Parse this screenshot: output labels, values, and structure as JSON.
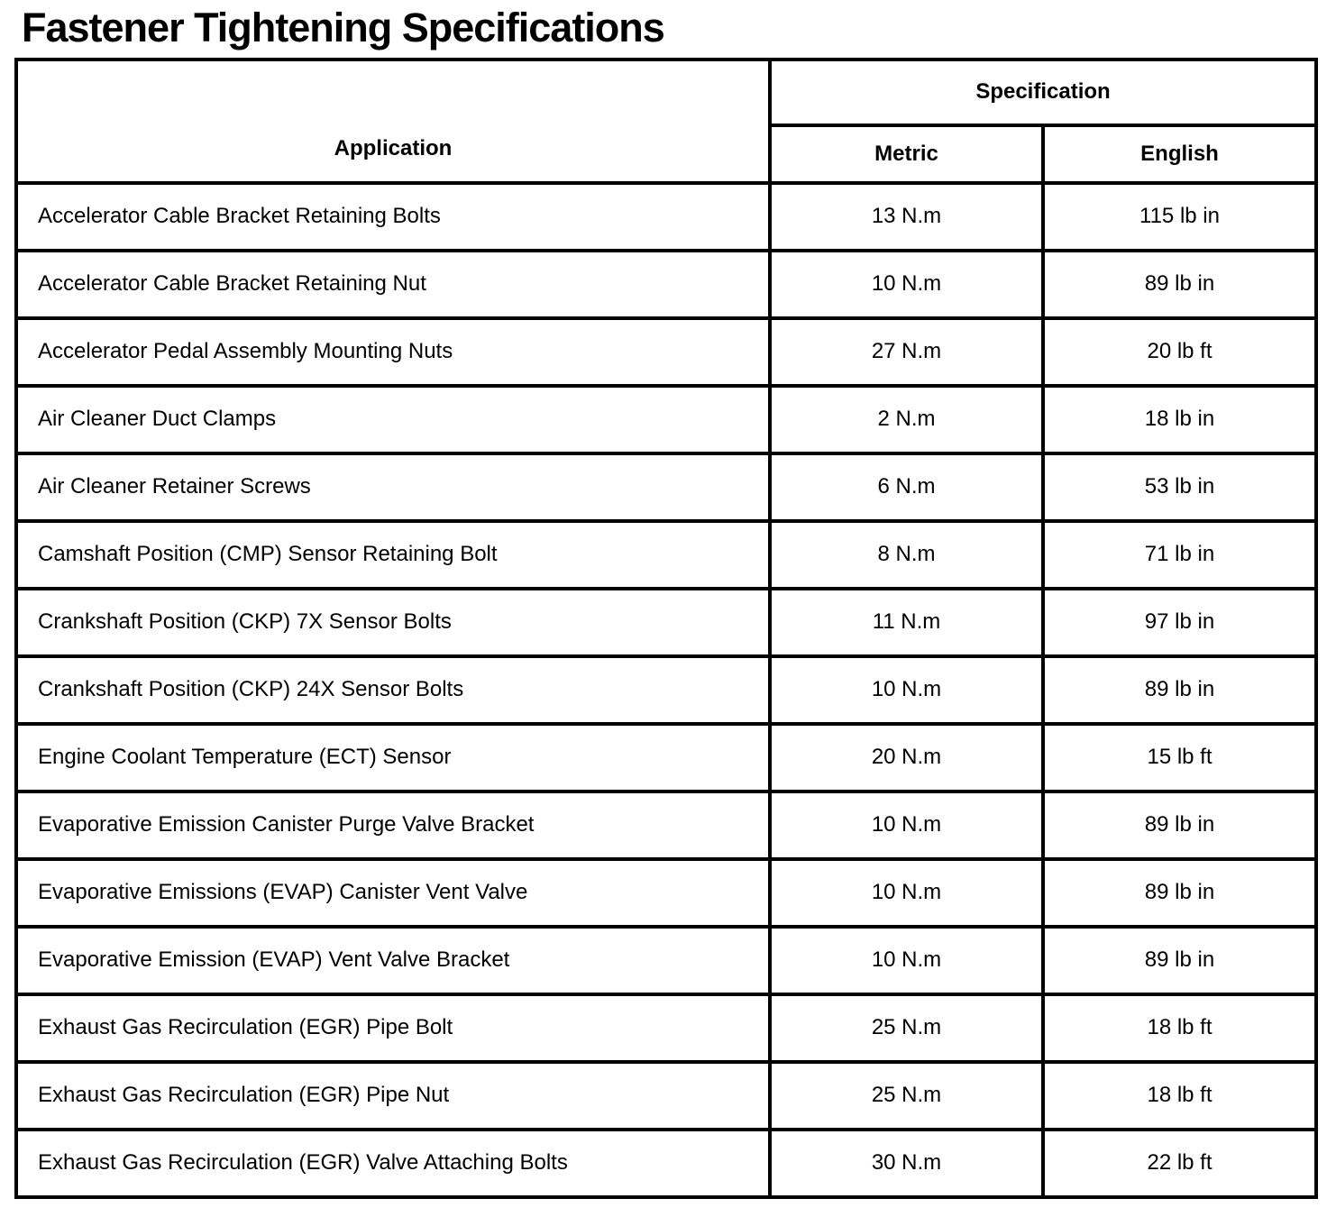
{
  "page": {
    "title": "Fastener Tightening Specifications"
  },
  "table": {
    "headers": {
      "application": "Application",
      "specification": "Specification",
      "metric": "Metric",
      "english": "English"
    },
    "rows": [
      {
        "application": "Accelerator Cable Bracket Retaining Bolts",
        "metric": "13 N.m",
        "english": "115 lb in"
      },
      {
        "application": "Accelerator Cable Bracket Retaining Nut",
        "metric": "10 N.m",
        "english": "89 lb in"
      },
      {
        "application": "Accelerator Pedal Assembly Mounting Nuts",
        "metric": "27 N.m",
        "english": "20 lb ft"
      },
      {
        "application": "Air Cleaner Duct Clamps",
        "metric": "2 N.m",
        "english": "18 lb in"
      },
      {
        "application": "Air Cleaner Retainer Screws",
        "metric": "6 N.m",
        "english": "53 lb in"
      },
      {
        "application": "Camshaft Position (CMP) Sensor Retaining Bolt",
        "metric": "8 N.m",
        "english": "71 lb in"
      },
      {
        "application": "Crankshaft Position (CKP) 7X Sensor Bolts",
        "metric": "11 N.m",
        "english": "97 lb in"
      },
      {
        "application": "Crankshaft Position (CKP) 24X Sensor Bolts",
        "metric": "10 N.m",
        "english": "89 lb in"
      },
      {
        "application": "Engine Coolant Temperature (ECT) Sensor",
        "metric": "20 N.m",
        "english": "15 lb ft"
      },
      {
        "application": "Evaporative Emission Canister Purge Valve Bracket",
        "metric": "10 N.m",
        "english": "89 lb in"
      },
      {
        "application": "Evaporative Emissions (EVAP) Canister Vent Valve",
        "metric": "10 N.m",
        "english": "89 lb in"
      },
      {
        "application": "Evaporative Emission (EVAP) Vent Valve Bracket",
        "metric": "10 N.m",
        "english": "89 lb in"
      },
      {
        "application": "Exhaust Gas Recirculation (EGR) Pipe Bolt",
        "metric": "25 N.m",
        "english": "18 lb ft"
      },
      {
        "application": "Exhaust Gas Recirculation (EGR) Pipe Nut",
        "metric": "25 N.m",
        "english": "18 lb ft"
      },
      {
        "application": "Exhaust Gas Recirculation (EGR) Valve Attaching Bolts",
        "metric": "30 N.m",
        "english": "22 lb ft"
      }
    ]
  }
}
